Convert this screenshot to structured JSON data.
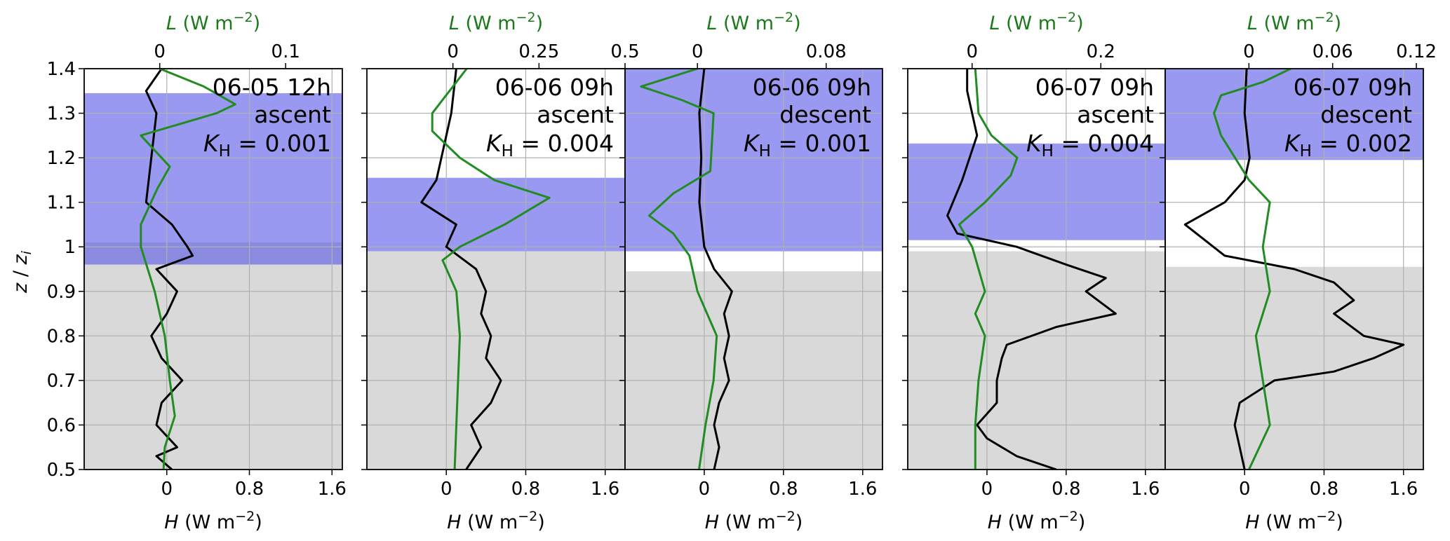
{
  "figure": {
    "y_axis_label": "z / zi",
    "y_ticks": [
      "0.5",
      "0.6",
      "0.7",
      "0.8",
      "0.9",
      "1",
      "1.1",
      "1.2",
      "1.3",
      "1.4"
    ]
  },
  "chart_data": [
    {
      "type": "line",
      "bottom_xlabel": "H (W m⁻²)",
      "top_xlabel": "L (W m⁻²)",
      "bottom_xlim": [
        -0.8,
        1.7
      ],
      "top_xlim": [
        -0.06,
        0.145
      ],
      "bottom_ticks": [
        0,
        0.8,
        1.6
      ],
      "bottom_tick_labels": [
        "0",
        "0.8",
        "1.6"
      ],
      "top_ticks": [
        0,
        0.1
      ],
      "top_tick_labels": [
        "0",
        "0.1"
      ],
      "ylim": [
        0.5,
        1.4
      ],
      "annotations": [
        "06-05 12h",
        "ascent",
        "K_H = 0.001"
      ],
      "kh_label": "K",
      "kh_sub": "H",
      "kh_value": "= 0.001",
      "bands": [
        {
          "color": "#9999f2",
          "y0": 1.0,
          "y1": 1.345
        },
        {
          "color": "#8a8ae0",
          "y0": 0.96,
          "y1": 1.01
        },
        {
          "color": "#d9d9d9",
          "y0": 0.5,
          "y1": 0.96
        }
      ],
      "series": [
        {
          "color": "#000000",
          "axis": "bottom",
          "points": [
            [
              0.05,
              0.5
            ],
            [
              -0.1,
              0.53
            ],
            [
              0.1,
              0.55
            ],
            [
              -0.1,
              0.6
            ],
            [
              -0.05,
              0.65
            ],
            [
              0.15,
              0.7
            ],
            [
              -0.05,
              0.75
            ],
            [
              -0.15,
              0.8
            ],
            [
              0.0,
              0.85
            ],
            [
              0.1,
              0.9
            ],
            [
              -0.1,
              0.95
            ],
            [
              0.25,
              0.98
            ],
            [
              0.2,
              1.0
            ],
            [
              0.05,
              1.05
            ],
            [
              -0.2,
              1.1
            ],
            [
              -0.15,
              1.2
            ],
            [
              -0.1,
              1.3
            ],
            [
              -0.2,
              1.35
            ],
            [
              -0.05,
              1.4
            ]
          ]
        },
        {
          "color": "#228b22",
          "axis": "top",
          "points": [
            [
              0.003,
              0.5
            ],
            [
              0.004,
              0.55
            ],
            [
              0.012,
              0.62
            ],
            [
              0.008,
              0.7
            ],
            [
              0.004,
              0.8
            ],
            [
              -0.004,
              0.9
            ],
            [
              -0.015,
              1.0
            ],
            [
              -0.015,
              1.05
            ],
            [
              -0.002,
              1.13
            ],
            [
              0.008,
              1.18
            ],
            [
              -0.015,
              1.25
            ],
            [
              0.045,
              1.3
            ],
            [
              0.06,
              1.32
            ],
            [
              0.035,
              1.36
            ],
            [
              0.0,
              1.4
            ]
          ]
        }
      ]
    },
    {
      "type": "line",
      "bottom_xlabel": "H (W m⁻²)",
      "top_xlabel": "L (W m⁻²)",
      "bottom_xlim": [
        -0.8,
        1.8
      ],
      "top_xlim": [
        -0.25,
        0.5
      ],
      "bottom_ticks": [
        0,
        0.8,
        1.6
      ],
      "bottom_tick_labels": [
        "0",
        "0.8",
        "1.6"
      ],
      "top_ticks": [
        0,
        0.25,
        0.5
      ],
      "top_tick_labels": [
        "0",
        "0.25",
        "0.5"
      ],
      "ylim": [
        0.5,
        1.4
      ],
      "annotations": [
        "06-06 09h",
        "ascent",
        "K_H = 0.004"
      ],
      "kh_label": "K",
      "kh_sub": "H",
      "kh_value": "= 0.004",
      "bands": [
        {
          "color": "#9999f2",
          "y0": 0.99,
          "y1": 1.155
        },
        {
          "color": "#d9d9d9",
          "y0": 0.5,
          "y1": 0.99
        }
      ],
      "series": [
        {
          "color": "#000000",
          "axis": "bottom",
          "points": [
            [
              0.2,
              0.5
            ],
            [
              0.35,
              0.55
            ],
            [
              0.25,
              0.6
            ],
            [
              0.45,
              0.65
            ],
            [
              0.55,
              0.7
            ],
            [
              0.4,
              0.75
            ],
            [
              0.45,
              0.8
            ],
            [
              0.35,
              0.85
            ],
            [
              0.4,
              0.9
            ],
            [
              0.3,
              0.95
            ],
            [
              0.0,
              1.0
            ],
            [
              0.1,
              1.05
            ],
            [
              -0.25,
              1.1
            ],
            [
              -0.1,
              1.15
            ],
            [
              -0.05,
              1.2
            ],
            [
              0.05,
              1.3
            ],
            [
              0.1,
              1.4
            ]
          ]
        },
        {
          "color": "#228b22",
          "axis": "top",
          "points": [
            [
              0.005,
              0.5
            ],
            [
              0.015,
              0.7
            ],
            [
              0.02,
              0.8
            ],
            [
              0.01,
              0.9
            ],
            [
              -0.03,
              0.97
            ],
            [
              0.02,
              1.0
            ],
            [
              0.15,
              1.05
            ],
            [
              0.28,
              1.11
            ],
            [
              0.12,
              1.15
            ],
            [
              0.02,
              1.2
            ],
            [
              -0.06,
              1.26
            ],
            [
              -0.06,
              1.3
            ],
            [
              -0.02,
              1.34
            ],
            [
              0.04,
              1.4
            ]
          ]
        }
      ]
    },
    {
      "type": "line",
      "bottom_xlabel": "H (W m⁻²)",
      "top_xlabel": "L (W m⁻²)",
      "bottom_xlim": [
        -0.8,
        1.8
      ],
      "top_xlim": [
        -0.045,
        0.115
      ],
      "bottom_ticks": [
        0,
        0.8,
        1.6
      ],
      "bottom_tick_labels": [
        "0",
        "0.8",
        "1.6"
      ],
      "top_ticks": [
        0,
        0.08
      ],
      "top_tick_labels": [
        "0",
        "0.08"
      ],
      "ylim": [
        0.5,
        1.4
      ],
      "annotations": [
        "06-06 09h",
        "descent",
        "K_H = 0.001"
      ],
      "kh_label": "K",
      "kh_sub": "H",
      "kh_value": "= 0.001",
      "bands": [
        {
          "color": "#9999f2",
          "y0": 0.99,
          "y1": 1.4
        },
        {
          "color": "#d9d9d9",
          "y0": 0.5,
          "y1": 0.945
        }
      ],
      "series": [
        {
          "color": "#000000",
          "axis": "bottom",
          "points": [
            [
              0.1,
              0.5
            ],
            [
              0.15,
              0.55
            ],
            [
              0.1,
              0.6
            ],
            [
              0.15,
              0.65
            ],
            [
              0.25,
              0.7
            ],
            [
              0.2,
              0.75
            ],
            [
              0.25,
              0.8
            ],
            [
              0.2,
              0.85
            ],
            [
              0.28,
              0.9
            ],
            [
              0.1,
              0.95
            ],
            [
              0.0,
              1.0
            ],
            [
              -0.05,
              1.1
            ],
            [
              -0.03,
              1.2
            ],
            [
              -0.05,
              1.3
            ],
            [
              0.0,
              1.4
            ]
          ]
        },
        {
          "color": "#228b22",
          "axis": "top",
          "points": [
            [
              0.001,
              0.5
            ],
            [
              0.005,
              0.6
            ],
            [
              0.01,
              0.7
            ],
            [
              0.012,
              0.8
            ],
            [
              0.0,
              0.9
            ],
            [
              -0.005,
              0.98
            ],
            [
              -0.015,
              1.03
            ],
            [
              -0.03,
              1.07
            ],
            [
              -0.015,
              1.12
            ],
            [
              0.008,
              1.17
            ],
            [
              0.01,
              1.3
            ],
            [
              -0.01,
              1.33
            ],
            [
              -0.035,
              1.36
            ],
            [
              0.0,
              1.4
            ]
          ]
        }
      ]
    },
    {
      "type": "line",
      "bottom_xlabel": "H (W m⁻²)",
      "top_xlabel": "L (W m⁻²)",
      "bottom_xlim": [
        -0.8,
        1.8
      ],
      "top_xlim": [
        -0.1,
        0.3
      ],
      "bottom_ticks": [
        0,
        0.8,
        1.6
      ],
      "bottom_tick_labels": [
        "0",
        "0.8",
        "1.6"
      ],
      "top_ticks": [
        0,
        0.2
      ],
      "top_tick_labels": [
        "0",
        "0.2"
      ],
      "ylim": [
        0.5,
        1.4
      ],
      "annotations": [
        "06-07 09h",
        "ascent",
        "K_H = 0.004"
      ],
      "kh_label": "K",
      "kh_sub": "H",
      "kh_value": "= 0.004",
      "bands": [
        {
          "color": "#9999f2",
          "y0": 1.015,
          "y1": 1.232
        },
        {
          "color": "#d9d9d9",
          "y0": 0.5,
          "y1": 0.99
        }
      ],
      "series": [
        {
          "color": "#000000",
          "axis": "bottom",
          "points": [
            [
              0.7,
              0.5
            ],
            [
              0.3,
              0.53
            ],
            [
              0.0,
              0.57
            ],
            [
              -0.1,
              0.6
            ],
            [
              0.1,
              0.65
            ],
            [
              0.1,
              0.7
            ],
            [
              0.15,
              0.75
            ],
            [
              0.2,
              0.78
            ],
            [
              0.7,
              0.82
            ],
            [
              1.3,
              0.85
            ],
            [
              1.0,
              0.9
            ],
            [
              1.2,
              0.93
            ],
            [
              0.8,
              0.96
            ],
            [
              0.3,
              1.0
            ],
            [
              -0.3,
              1.03
            ],
            [
              -0.4,
              1.07
            ],
            [
              -0.25,
              1.15
            ],
            [
              -0.1,
              1.25
            ],
            [
              -0.2,
              1.35
            ],
            [
              -0.2,
              1.4
            ]
          ]
        },
        {
          "color": "#228b22",
          "axis": "top",
          "points": [
            [
              0.005,
              0.5
            ],
            [
              0.005,
              0.6
            ],
            [
              0.01,
              0.7
            ],
            [
              0.02,
              0.8
            ],
            [
              0.005,
              0.85
            ],
            [
              0.02,
              0.9
            ],
            [
              0.0,
              1.0
            ],
            [
              -0.02,
              1.05
            ],
            [
              0.02,
              1.1
            ],
            [
              0.06,
              1.16
            ],
            [
              0.07,
              1.2
            ],
            [
              0.03,
              1.25
            ],
            [
              0.01,
              1.3
            ],
            [
              0.005,
              1.4
            ]
          ]
        }
      ]
    },
    {
      "type": "line",
      "bottom_xlabel": "H (W m⁻²)",
      "top_xlabel": "L (W m⁻²)",
      "bottom_xlim": [
        -0.8,
        1.8
      ],
      "top_xlim": [
        -0.06,
        0.125
      ],
      "bottom_ticks": [
        0,
        0.8,
        1.6
      ],
      "bottom_tick_labels": [
        "0",
        "0.8",
        "1.6"
      ],
      "top_ticks": [
        0,
        0.06,
        0.12
      ],
      "top_tick_labels": [
        "0",
        "0.06",
        "0.12"
      ],
      "ylim": [
        0.5,
        1.4
      ],
      "annotations": [
        "06-07 09h",
        "descent",
        "K_H = 0.002"
      ],
      "kh_label": "K",
      "kh_sub": "H",
      "kh_value": "= 0.002",
      "bands": [
        {
          "color": "#9999f2",
          "y0": 1.195,
          "y1": 1.4
        },
        {
          "color": "#d9d9d9",
          "y0": 0.5,
          "y1": 0.955
        }
      ],
      "series": [
        {
          "color": "#000000",
          "axis": "bottom",
          "points": [
            [
              0.0,
              0.5
            ],
            [
              -0.05,
              0.55
            ],
            [
              -0.1,
              0.6
            ],
            [
              -0.05,
              0.65
            ],
            [
              0.3,
              0.7
            ],
            [
              0.9,
              0.72
            ],
            [
              1.3,
              0.75
            ],
            [
              1.6,
              0.78
            ],
            [
              1.2,
              0.8
            ],
            [
              0.9,
              0.85
            ],
            [
              1.1,
              0.88
            ],
            [
              0.9,
              0.92
            ],
            [
              0.5,
              0.95
            ],
            [
              -0.2,
              0.98
            ],
            [
              -0.6,
              1.05
            ],
            [
              -0.2,
              1.1
            ],
            [
              0.0,
              1.15
            ],
            [
              0.05,
              1.2
            ],
            [
              0.0,
              1.3
            ],
            [
              0.02,
              1.4
            ]
          ]
        },
        {
          "color": "#228b22",
          "axis": "top",
          "points": [
            [
              0.0,
              0.5
            ],
            [
              0.015,
              0.6
            ],
            [
              0.01,
              0.7
            ],
            [
              0.005,
              0.8
            ],
            [
              0.015,
              0.9
            ],
            [
              0.01,
              1.0
            ],
            [
              0.015,
              1.1
            ],
            [
              0.0,
              1.15
            ],
            [
              -0.01,
              1.2
            ],
            [
              -0.02,
              1.25
            ],
            [
              -0.025,
              1.3
            ],
            [
              -0.02,
              1.34
            ],
            [
              0.01,
              1.37
            ],
            [
              0.03,
              1.4
            ]
          ]
        }
      ]
    }
  ]
}
